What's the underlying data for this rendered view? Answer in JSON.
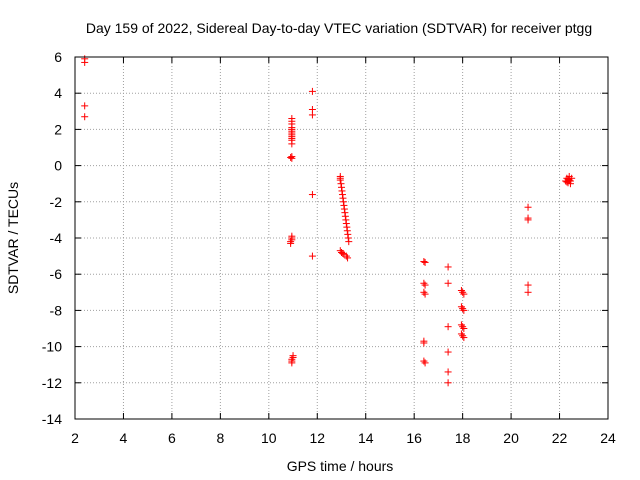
{
  "chart_data": {
    "type": "scatter",
    "title": "Day 159 of 2022, Sidereal Day-to-day VTEC variation (SDTVAR) for receiver ptgg",
    "xlabel": "GPS time / hours",
    "ylabel": "SDTVAR / TECUs",
    "xlim": [
      2,
      24
    ],
    "ylim": [
      -14,
      6
    ],
    "xticks": [
      2,
      4,
      6,
      8,
      10,
      12,
      14,
      16,
      18,
      20,
      22,
      24
    ],
    "yticks": [
      -14,
      -12,
      -10,
      -8,
      -6,
      -4,
      -2,
      0,
      2,
      4,
      6
    ],
    "grid": true,
    "marker": "+",
    "color": "#ff0000",
    "series": [
      {
        "name": "SDTVAR",
        "points": [
          [
            2.4,
            5.9
          ],
          [
            2.4,
            5.7
          ],
          [
            2.4,
            3.3
          ],
          [
            2.4,
            2.7
          ],
          [
            10.95,
            2.6
          ],
          [
            10.95,
            2.45
          ],
          [
            10.95,
            2.3
          ],
          [
            10.95,
            2.1
          ],
          [
            10.95,
            2.0
          ],
          [
            10.95,
            1.9
          ],
          [
            10.95,
            1.8
          ],
          [
            10.95,
            1.7
          ],
          [
            10.95,
            1.6
          ],
          [
            10.95,
            1.5
          ],
          [
            10.95,
            1.4
          ],
          [
            10.95,
            1.2
          ],
          [
            10.95,
            0.5
          ],
          [
            10.95,
            0.4
          ],
          [
            10.9,
            0.45
          ],
          [
            10.95,
            -3.9
          ],
          [
            10.95,
            -4.0
          ],
          [
            10.95,
            -4.1
          ],
          [
            10.9,
            -4.2
          ],
          [
            10.9,
            -4.3
          ],
          [
            11.0,
            -10.5
          ],
          [
            11.0,
            -10.6
          ],
          [
            10.95,
            -10.7
          ],
          [
            10.95,
            -10.8
          ],
          [
            10.95,
            -10.9
          ],
          [
            11.8,
            4.1
          ],
          [
            11.8,
            3.1
          ],
          [
            11.8,
            2.8
          ],
          [
            11.8,
            -1.6
          ],
          [
            11.8,
            -5.0
          ],
          [
            12.95,
            -0.6
          ],
          [
            12.95,
            -0.7
          ],
          [
            12.95,
            -0.8
          ],
          [
            12.98,
            -1.0
          ],
          [
            13.0,
            -1.2
          ],
          [
            13.02,
            -1.4
          ],
          [
            13.04,
            -1.6
          ],
          [
            13.06,
            -1.8
          ],
          [
            13.08,
            -2.0
          ],
          [
            13.1,
            -2.2
          ],
          [
            13.12,
            -2.4
          ],
          [
            13.14,
            -2.6
          ],
          [
            13.16,
            -2.8
          ],
          [
            13.18,
            -3.0
          ],
          [
            13.2,
            -3.2
          ],
          [
            13.22,
            -3.4
          ],
          [
            13.24,
            -3.6
          ],
          [
            13.26,
            -3.8
          ],
          [
            13.28,
            -4.0
          ],
          [
            13.3,
            -4.2
          ],
          [
            12.95,
            -4.7
          ],
          [
            13.0,
            -4.8
          ],
          [
            13.05,
            -4.85
          ],
          [
            13.1,
            -4.9
          ],
          [
            13.2,
            -5.0
          ],
          [
            13.25,
            -5.1
          ],
          [
            16.4,
            -5.3
          ],
          [
            16.45,
            -5.35
          ],
          [
            16.4,
            -6.5
          ],
          [
            16.45,
            -6.6
          ],
          [
            16.4,
            -7.0
          ],
          [
            16.45,
            -7.1
          ],
          [
            16.4,
            -9.7
          ],
          [
            16.4,
            -9.8
          ],
          [
            16.4,
            -10.8
          ],
          [
            16.45,
            -10.9
          ],
          [
            17.4,
            -5.6
          ],
          [
            17.4,
            -6.5
          ],
          [
            17.4,
            -8.9
          ],
          [
            17.4,
            -10.3
          ],
          [
            17.4,
            -11.4
          ],
          [
            17.4,
            -12.0
          ],
          [
            17.95,
            -6.9
          ],
          [
            18.0,
            -7.0
          ],
          [
            18.05,
            -7.1
          ],
          [
            17.95,
            -7.8
          ],
          [
            18.0,
            -7.9
          ],
          [
            18.05,
            -8.0
          ],
          [
            17.95,
            -8.8
          ],
          [
            18.0,
            -8.9
          ],
          [
            18.05,
            -9.0
          ],
          [
            17.95,
            -9.3
          ],
          [
            18.0,
            -9.4
          ],
          [
            18.05,
            -9.5
          ],
          [
            20.7,
            -2.3
          ],
          [
            20.7,
            -2.9
          ],
          [
            20.7,
            -3.0
          ],
          [
            20.7,
            -6.6
          ],
          [
            20.7,
            -7.0
          ],
          [
            22.3,
            -0.7
          ],
          [
            22.35,
            -0.75
          ],
          [
            22.4,
            -0.8
          ],
          [
            22.45,
            -0.85
          ],
          [
            22.3,
            -0.9
          ],
          [
            22.35,
            -0.95
          ],
          [
            22.4,
            -0.6
          ],
          [
            22.5,
            -0.7
          ],
          [
            22.25,
            -0.85
          ],
          [
            22.45,
            -1.0
          ]
        ]
      }
    ]
  }
}
